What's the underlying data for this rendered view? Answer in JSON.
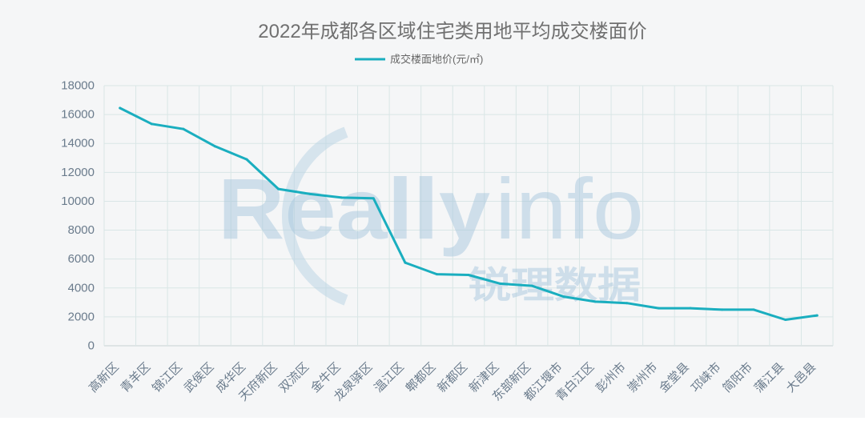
{
  "colors": {
    "background": "#f5f6f7",
    "line": "#1aaebf",
    "grid": "#d9e6e6",
    "axis_text": "#6a7b8c",
    "title": "#707070",
    "watermark": "#a8c8de"
  },
  "watermark": {
    "logo_text": "Really",
    "logo_text_2": "info",
    "brand_cn": "锐理数据"
  },
  "chart_data": {
    "type": "line",
    "title": "2022年成都各区域住宅类用地平均成交楼面价",
    "legend": "top-center",
    "grid": true,
    "categories": [
      "高新区",
      "青羊区",
      "锦江区",
      "武侯区",
      "成华区",
      "天府新区",
      "双流区",
      "金牛区",
      "龙泉驿区",
      "温江区",
      "郫都区",
      "新都区",
      "新津区",
      "东部新区",
      "都江堰市",
      "青白江区",
      "彭州市",
      "崇州市",
      "金堂县",
      "邛崃市",
      "简阳市",
      "蒲江县",
      "大邑县"
    ],
    "series": [
      {
        "name": "成交楼面地价(元/㎡)",
        "values": [
          16450,
          15350,
          15000,
          13800,
          12900,
          10850,
          10500,
          10250,
          10200,
          5750,
          4950,
          4900,
          4300,
          4150,
          3400,
          3050,
          2950,
          2600,
          2600,
          2500,
          2500,
          1800,
          2100
        ]
      }
    ],
    "ylim": [
      0,
      18000
    ],
    "yticks": [
      0,
      2000,
      4000,
      6000,
      8000,
      10000,
      12000,
      14000,
      16000,
      18000
    ]
  }
}
